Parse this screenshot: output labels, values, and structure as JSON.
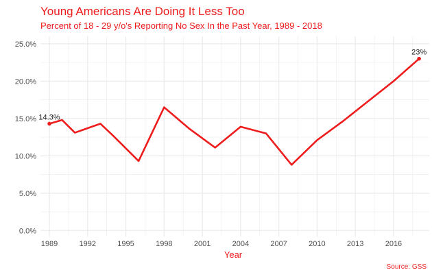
{
  "colors": {
    "accent": "#ee1c1c",
    "grid": "#ebebeb",
    "tick_text": "#4d4d4d",
    "label_text": "#1a1a1a"
  },
  "chart_data": {
    "type": "line",
    "title": "Young Americans Are Doing It Less Too",
    "subtitle": "Percent of 18 - 29 y/o's Reporting No Sex In the Past Year, 1989 - 2018",
    "xlabel": "Year",
    "ylabel": "",
    "caption": "Source: GSS",
    "xlim": [
      1988.3,
      2018.8
    ],
    "ylim": [
      -0.8,
      26.0
    ],
    "x_ticks": [
      1989,
      1992,
      1995,
      1998,
      2001,
      2004,
      2007,
      2010,
      2013,
      2016
    ],
    "x_tick_labels": [
      "1989",
      "1992",
      "1995",
      "1998",
      "2001",
      "2004",
      "2007",
      "2010",
      "2013",
      "2016"
    ],
    "y_ticks": [
      0,
      5,
      10,
      15,
      20,
      25
    ],
    "y_tick_labels": [
      "0.0%",
      "5.0%",
      "10.0%",
      "15.0%",
      "20.0%",
      "25.0%"
    ],
    "grid": true,
    "legend": "none",
    "series": [
      {
        "x": [
          1989,
          1990,
          1991,
          1993,
          1994,
          1996,
          1998,
          2000,
          2002,
          2004,
          2006,
          2008,
          2010,
          2012,
          2014,
          2016,
          2018
        ],
        "values": [
          14.3,
          14.8,
          13.1,
          14.3,
          12.7,
          9.3,
          16.5,
          13.6,
          11.1,
          13.9,
          13.0,
          8.8,
          12.1,
          14.6,
          17.3,
          20.0,
          23.0
        ]
      }
    ],
    "annotations": [
      {
        "x": 1989,
        "y": 14.3,
        "text": "14.3%",
        "anchor": "above"
      },
      {
        "x": 2018,
        "y": 23.0,
        "text": "23%",
        "anchor": "above"
      }
    ]
  }
}
